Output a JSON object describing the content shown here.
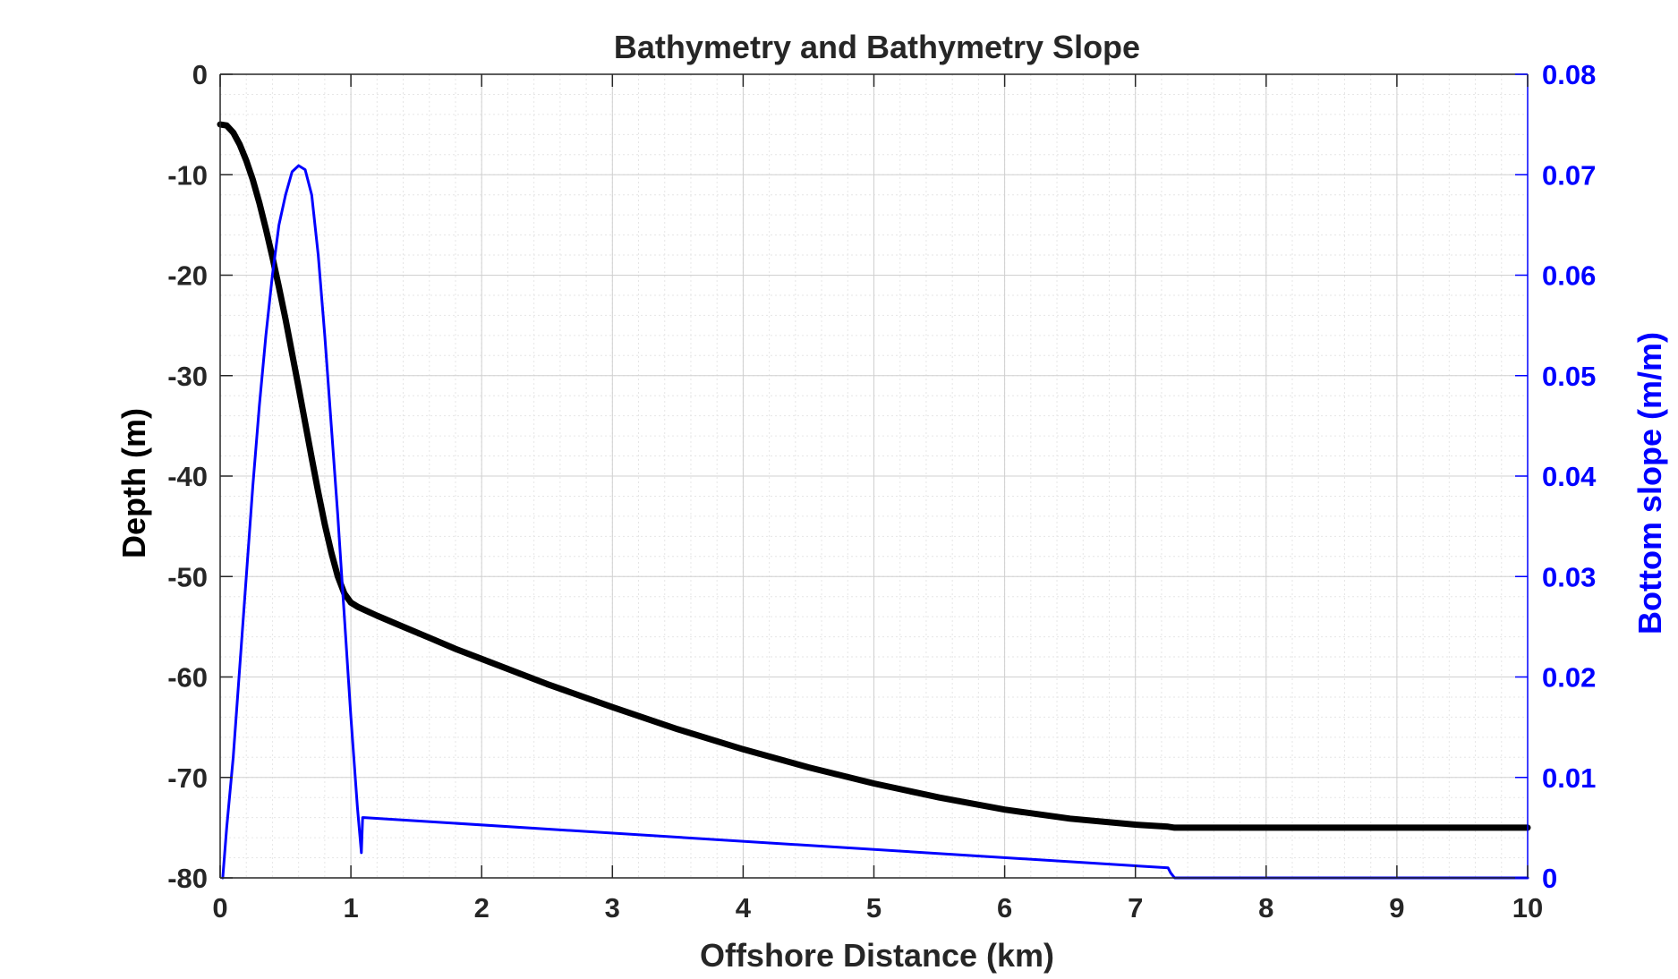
{
  "chart_data": {
    "type": "line",
    "title": "Bathymetry and Bathymetry Slope",
    "xlabel": "Offshore Distance (km)",
    "ylabel_left": "Depth (m)",
    "ylabel_right": "Bottom slope (m/m)",
    "xlim": [
      0,
      10
    ],
    "ylim_left": [
      -80,
      0
    ],
    "ylim_right": [
      0,
      0.08
    ],
    "xticks": [
      "0",
      "1",
      "2",
      "3",
      "4",
      "5",
      "6",
      "7",
      "8",
      "9",
      "10"
    ],
    "yticks_left": [
      "0",
      "-10",
      "-20",
      "-30",
      "-40",
      "-50",
      "-60",
      "-70",
      "-80"
    ],
    "yticks_right": [
      "0.08",
      "0.07",
      "0.06",
      "0.05",
      "0.04",
      "0.03",
      "0.02",
      "0.01",
      "0"
    ],
    "grid": true,
    "minor_grid": true,
    "colors": {
      "depth": "#000000",
      "slope": "#0000ff",
      "grid": "#d0d0d0",
      "axis": "#262626"
    },
    "series": [
      {
        "axis": "left",
        "color": "#000000",
        "x": [
          0,
          0.05,
          0.1,
          0.15,
          0.2,
          0.25,
          0.3,
          0.35,
          0.4,
          0.45,
          0.5,
          0.55,
          0.6,
          0.65,
          0.7,
          0.75,
          0.8,
          0.85,
          0.9,
          0.95,
          1.0,
          1.05,
          1.1,
          1.2,
          1.4,
          1.6,
          1.8,
          2.0,
          2.5,
          3.0,
          3.5,
          4.0,
          4.5,
          5.0,
          5.5,
          6.0,
          6.5,
          7.0,
          7.25,
          7.3,
          8.0,
          9.0,
          10.0
        ],
        "y": [
          -5,
          -5.1,
          -5.8,
          -7.0,
          -8.6,
          -10.5,
          -12.8,
          -15.4,
          -18.2,
          -21.2,
          -24.4,
          -27.8,
          -31.2,
          -34.7,
          -38.2,
          -41.6,
          -44.8,
          -47.6,
          -50.0,
          -51.7,
          -52.6,
          -53.0,
          -53.3,
          -53.9,
          -55.0,
          -56.1,
          -57.2,
          -58.2,
          -60.7,
          -63.0,
          -65.2,
          -67.2,
          -69.0,
          -70.6,
          -72.0,
          -73.2,
          -74.1,
          -74.7,
          -74.9,
          -75.0,
          -75.0,
          -75.0,
          -75.0
        ]
      },
      {
        "axis": "right",
        "color": "#0000ff",
        "x": [
          0.02,
          0.05,
          0.1,
          0.15,
          0.2,
          0.25,
          0.3,
          0.35,
          0.4,
          0.45,
          0.5,
          0.55,
          0.6,
          0.65,
          0.7,
          0.75,
          0.8,
          0.85,
          0.9,
          0.95,
          1.0,
          1.05,
          1.08,
          1.09,
          1.1,
          7.25,
          7.27,
          7.3,
          10.0
        ],
        "y": [
          0.0,
          0.005,
          0.012,
          0.021,
          0.03,
          0.039,
          0.047,
          0.054,
          0.06,
          0.065,
          0.068,
          0.0703,
          0.0709,
          0.0705,
          0.068,
          0.062,
          0.054,
          0.045,
          0.036,
          0.026,
          0.016,
          0.007,
          0.0025,
          0.006,
          0.006,
          0.001,
          0.0005,
          0.0,
          0.0
        ]
      }
    ]
  }
}
